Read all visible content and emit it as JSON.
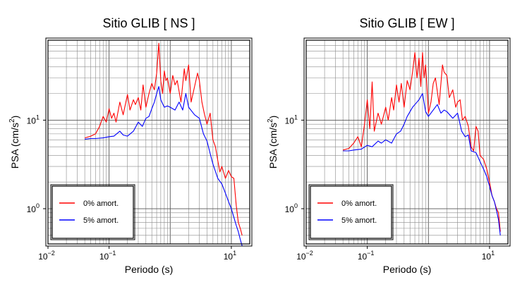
{
  "chart_data": [
    {
      "type": "line",
      "title": "Sitio GLIB [ NS ]",
      "xlabel": "Periodo (s)",
      "ylabel": "PSA (cm/s²)",
      "ylabel_main": "PSA (cm/s",
      "ylabel_sup": "2",
      "ylabel_close": ")",
      "x_scale": "log",
      "y_scale": "log",
      "xlim": [
        0.01,
        20
      ],
      "ylim": [
        0.4,
        80
      ],
      "grid": true,
      "legend_position": "bottom-left",
      "x_ticks": [
        {
          "value": 0.01,
          "base": "10",
          "exp": "−2"
        },
        {
          "value": 0.1,
          "base": "10",
          "exp": "−1"
        },
        {
          "value": 10,
          "base": "10",
          "exp": "1"
        }
      ],
      "y_ticks": [
        {
          "value": 1,
          "base": "10",
          "exp": "0"
        },
        {
          "value": 10,
          "base": "10",
          "exp": "1"
        }
      ],
      "series": [
        {
          "name": "0% amort.",
          "color": "#ff0000",
          "x": [
            0.04,
            0.05,
            0.06,
            0.07,
            0.08,
            0.09,
            0.1,
            0.11,
            0.12,
            0.13,
            0.15,
            0.17,
            0.2,
            0.22,
            0.25,
            0.27,
            0.3,
            0.33,
            0.36,
            0.4,
            0.45,
            0.5,
            0.55,
            0.6,
            0.65,
            0.7,
            0.75,
            0.8,
            0.85,
            0.9,
            1.0,
            1.1,
            1.2,
            1.3,
            1.5,
            1.7,
            1.8,
            2.0,
            2.2,
            2.5,
            2.8,
            3.0,
            3.3,
            3.6,
            4.0,
            4.5,
            5.0,
            5.5,
            6.0,
            6.5,
            7.0,
            8.0,
            9.0,
            10.0,
            11.0,
            12.0,
            13.0,
            14.0,
            15.0
          ],
          "y": [
            6.3,
            6.6,
            7.0,
            8.5,
            11.0,
            9.5,
            13.5,
            10.5,
            12.0,
            9.5,
            16.0,
            11.5,
            19.5,
            13.0,
            17.0,
            15.0,
            18.0,
            13.0,
            25.0,
            14.0,
            20.0,
            26.0,
            22.0,
            34.0,
            74.0,
            28.0,
            20.0,
            36.0,
            28.0,
            30.0,
            20.0,
            32.0,
            25.0,
            28.0,
            16.0,
            38.0,
            28.0,
            42.0,
            16.0,
            24.0,
            34.0,
            28.0,
            16.0,
            12.0,
            9.0,
            12.0,
            6.0,
            5.0,
            3.5,
            2.6,
            3.0,
            2.2,
            2.7,
            2.3,
            2.2,
            1.1,
            0.7,
            0.6,
            0.5
          ]
        },
        {
          "name": "5% amort.",
          "color": "#0000ff",
          "x": [
            0.04,
            0.05,
            0.06,
            0.08,
            0.1,
            0.12,
            0.15,
            0.17,
            0.2,
            0.25,
            0.3,
            0.35,
            0.4,
            0.45,
            0.5,
            0.55,
            0.6,
            0.65,
            0.7,
            0.8,
            0.9,
            1.0,
            1.2,
            1.4,
            1.6,
            1.8,
            2.0,
            2.5,
            3.0,
            3.5,
            4.0,
            4.5,
            5.0,
            6.0,
            7.0,
            8.0,
            9.0,
            10.0,
            11.0,
            12.0,
            13.0,
            14.0,
            15.0
          ],
          "y": [
            6.1,
            6.2,
            6.2,
            6.3,
            6.5,
            6.6,
            7.5,
            6.8,
            6.6,
            7.5,
            9.5,
            8.5,
            10.5,
            11.0,
            13.5,
            16.0,
            20.0,
            24.0,
            17.0,
            14.0,
            14.5,
            14.0,
            13.0,
            16.0,
            13.0,
            20.0,
            14.0,
            11.5,
            10.5,
            7.0,
            5.8,
            4.2,
            3.2,
            2.2,
            1.9,
            1.5,
            1.2,
            1.0,
            0.8,
            0.65,
            0.55,
            0.45,
            0.38
          ]
        }
      ]
    },
    {
      "type": "line",
      "title": "Sitio GLIB [ EW ]",
      "xlabel": "Periodo (s)",
      "ylabel": "PSA (cm/s²)",
      "ylabel_main": "PSA (cm/s",
      "ylabel_sup": "2",
      "ylabel_close": ")",
      "x_scale": "log",
      "y_scale": "log",
      "xlim": [
        0.01,
        20
      ],
      "ylim": [
        0.4,
        80
      ],
      "grid": true,
      "legend_position": "bottom-left",
      "x_ticks": [
        {
          "value": 0.01,
          "base": "10",
          "exp": "−2"
        },
        {
          "value": 0.1,
          "base": "10",
          "exp": "−1"
        },
        {
          "value": 10,
          "base": "10",
          "exp": "1"
        }
      ],
      "y_ticks": [
        {
          "value": 1,
          "base": "10",
          "exp": "0"
        },
        {
          "value": 10,
          "base": "10",
          "exp": "1"
        }
      ],
      "series": [
        {
          "name": "0% amort.",
          "color": "#ff0000",
          "x": [
            0.04,
            0.05,
            0.06,
            0.07,
            0.08,
            0.09,
            0.1,
            0.11,
            0.12,
            0.13,
            0.15,
            0.17,
            0.2,
            0.22,
            0.25,
            0.27,
            0.3,
            0.33,
            0.36,
            0.4,
            0.45,
            0.5,
            0.55,
            0.6,
            0.65,
            0.7,
            0.75,
            0.8,
            0.85,
            0.9,
            1.0,
            1.1,
            1.2,
            1.3,
            1.5,
            1.7,
            1.8,
            2.0,
            2.2,
            2.5,
            2.8,
            3.0,
            3.3,
            3.6,
            4.0,
            4.5,
            5.0,
            5.5,
            6.0,
            6.5,
            7.0,
            8.0,
            9.0,
            10.0,
            11.0,
            12.0,
            13.0,
            14.0,
            15.0
          ],
          "y": [
            4.6,
            4.8,
            5.5,
            6.5,
            5.0,
            9.0,
            17.0,
            8.0,
            27.0,
            7.5,
            12.0,
            9.0,
            14.0,
            10.0,
            18.0,
            13.0,
            25.0,
            16.0,
            26.0,
            14.0,
            28.0,
            22.0,
            35.0,
            58.0,
            30.0,
            50.0,
            24.0,
            58.0,
            30.0,
            42.0,
            12.0,
            16.0,
            26.0,
            30.0,
            15.0,
            42.0,
            35.0,
            32.0,
            18.0,
            22.0,
            14.0,
            16.0,
            17.0,
            10.0,
            11.0,
            8.5,
            5.0,
            4.5,
            8.5,
            7.5,
            4.0,
            3.6,
            2.8,
            2.0,
            1.4,
            1.2,
            1.0,
            0.9,
            0.55
          ]
        },
        {
          "name": "5% amort.",
          "color": "#0000ff",
          "x": [
            0.04,
            0.05,
            0.06,
            0.08,
            0.1,
            0.12,
            0.15,
            0.17,
            0.2,
            0.25,
            0.3,
            0.35,
            0.4,
            0.45,
            0.5,
            0.55,
            0.6,
            0.65,
            0.7,
            0.8,
            0.9,
            1.0,
            1.2,
            1.4,
            1.6,
            1.8,
            2.0,
            2.5,
            3.0,
            3.5,
            4.0,
            4.5,
            5.0,
            6.0,
            7.0,
            8.0,
            9.0,
            10.0,
            11.0,
            12.0,
            13.0,
            14.0,
            15.0
          ],
          "y": [
            4.5,
            4.5,
            4.6,
            4.7,
            5.2,
            5.0,
            5.8,
            5.5,
            6.0,
            5.5,
            7.0,
            7.5,
            9.0,
            11.0,
            12.5,
            14.0,
            15.0,
            16.0,
            17.0,
            20.0,
            12.5,
            11.0,
            13.0,
            15.0,
            12.0,
            13.0,
            12.5,
            10.5,
            12.0,
            7.5,
            6.5,
            6.8,
            4.5,
            4.3,
            3.4,
            2.8,
            2.3,
            1.8,
            1.4,
            1.2,
            0.95,
            0.75,
            0.5
          ]
        }
      ]
    }
  ]
}
